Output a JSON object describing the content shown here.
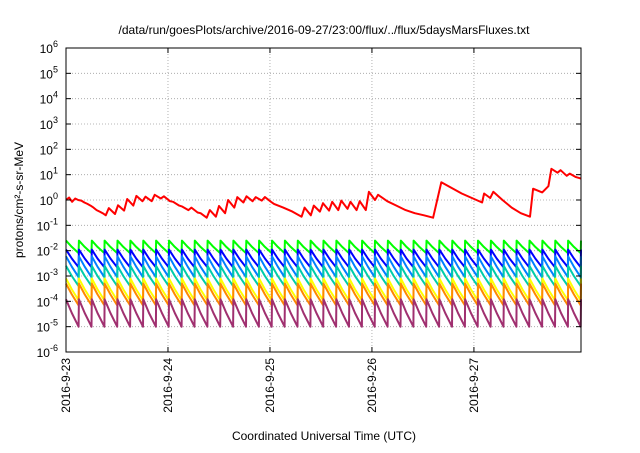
{
  "chart_data": {
    "type": "line",
    "title": "/data/run/goesPlots/archive/2016-09-27/23:00/flux/../flux/5daysMarsFluxes.txt",
    "xlabel": "Coordinated Universal Time (UTC)",
    "ylabel": "protons/cm²-s-sr-MeV",
    "x_ticks": [
      "2016-9-23",
      "2016-9-24",
      "2016-9-25",
      "2016-9-26",
      "2016-9-27"
    ],
    "x_range_days": [
      0,
      5.05
    ],
    "y_scale": "log",
    "ylim": [
      1e-06,
      1000000.0
    ],
    "y_ticks": [
      {
        "base": "10",
        "exp": "-6",
        "value": -6
      },
      {
        "base": "10",
        "exp": "-5",
        "value": -5
      },
      {
        "base": "10",
        "exp": "-4",
        "value": -4
      },
      {
        "base": "10",
        "exp": "-3",
        "value": -3
      },
      {
        "base": "10",
        "exp": "-2",
        "value": -2
      },
      {
        "base": "10",
        "exp": "-1",
        "value": -1
      },
      {
        "base": "10",
        "exp": "0",
        "value": 0
      },
      {
        "base": "10",
        "exp": "1",
        "value": 1
      },
      {
        "base": "10",
        "exp": "2",
        "value": 2
      },
      {
        "base": "10",
        "exp": "3",
        "value": 3
      },
      {
        "base": "10",
        "exp": "4",
        "value": 4
      },
      {
        "base": "10",
        "exp": "5",
        "value": 5
      },
      {
        "base": "10",
        "exp": "6",
        "value": 6
      }
    ],
    "grid": true,
    "sawtooth_count": 40,
    "series": [
      {
        "color": "#ff0000",
        "segments": [
          {
            "x": [
              0.0,
              0.03,
              0.06,
              0.09,
              0.12,
              0.15,
              0.18,
              0.21,
              0.24,
              0.27,
              0.3,
              0.33,
              0.36,
              0.39
            ],
            "y": [
              1.0,
              1.25,
              0.85,
              1.15,
              1.0,
              0.95,
              0.8,
              0.7,
              0.6,
              0.5,
              0.4,
              0.35,
              0.3,
              0.25
            ]
          },
          {
            "x": [
              0.39,
              0.42,
              0.48,
              0.51,
              0.57,
              0.6,
              0.66,
              0.69,
              0.75,
              0.78,
              0.84,
              0.87,
              0.93,
              0.96,
              1.02,
              1.05,
              1.11,
              1.14,
              1.2,
              1.23,
              1.29,
              1.32,
              1.38,
              1.41,
              1.47,
              1.5
            ],
            "y": [
              0.25,
              0.48,
              0.28,
              0.62,
              0.38,
              1.1,
              0.6,
              1.45,
              0.9,
              1.35,
              0.9,
              1.6,
              1.15,
              1.4,
              0.9,
              0.85,
              0.6,
              0.55,
              0.4,
              0.5,
              0.32,
              0.3,
              0.2,
              0.4,
              0.22,
              0.58
            ]
          },
          {
            "x": [
              1.5,
              1.56,
              1.59,
              1.65,
              1.68,
              1.74,
              1.77,
              1.83,
              1.86,
              1.92,
              1.95,
              2.01,
              2.04,
              2.13,
              2.22,
              2.31
            ],
            "y": [
              0.58,
              0.3,
              1.0,
              0.5,
              1.3,
              0.8,
              1.4,
              0.9,
              1.3,
              0.95,
              1.3,
              0.85,
              0.7,
              0.5,
              0.35,
              0.22
            ]
          },
          {
            "x": [
              2.31,
              2.34,
              2.4,
              2.43,
              2.49,
              2.52,
              2.58,
              2.61,
              2.67,
              2.7,
              2.76,
              2.79,
              2.85,
              2.88,
              2.94,
              2.97
            ],
            "y": [
              0.22,
              0.5,
              0.25,
              0.6,
              0.35,
              0.75,
              0.38,
              0.85,
              0.4,
              0.95,
              0.45,
              0.85,
              0.4,
              0.9,
              0.4,
              2.1
            ]
          },
          {
            "x": [
              2.97,
              3.03,
              3.06,
              3.15,
              3.24,
              3.33,
              3.42,
              3.51,
              3.6,
              3.68
            ],
            "y": [
              2.1,
              1.0,
              1.6,
              0.9,
              0.6,
              0.4,
              0.3,
              0.25,
              0.2,
              5.0
            ]
          },
          {
            "x": [
              3.68,
              3.78,
              3.88,
              3.98,
              4.08,
              4.1,
              4.16,
              4.19,
              4.28,
              4.37,
              4.46,
              4.55,
              4.58
            ],
            "y": [
              5.0,
              3.0,
              1.8,
              1.2,
              0.8,
              1.8,
              1.2,
              2.1,
              1.0,
              0.5,
              0.3,
              0.22,
              2.8
            ]
          },
          {
            "x": [
              4.58,
              4.67,
              4.73,
              4.76,
              4.82,
              4.85,
              4.91,
              4.94,
              5.0,
              5.05
            ],
            "y": [
              2.8,
              2.0,
              3.5,
              17.0,
              12.0,
              15.0,
              9.0,
              11.0,
              8.0,
              7.0
            ]
          }
        ]
      },
      {
        "color": "#00ff00",
        "sawtooth": {
          "min": 0.008,
          "max": 0.025
        }
      },
      {
        "color": "#0000ff",
        "sawtooth": {
          "min": 0.0022,
          "max": 0.011
        }
      },
      {
        "color": "#0080ff",
        "sawtooth": {
          "min": 0.0009,
          "max": 0.006
        }
      },
      {
        "color": "#00ccaa",
        "sawtooth": {
          "min": 0.0004,
          "max": 0.0025
        }
      },
      {
        "color": "#ffff00",
        "sawtooth": {
          "min": 0.00011,
          "max": 0.0008
        }
      },
      {
        "color": "#ff8800",
        "sawtooth": {
          "min": 7e-05,
          "max": 0.0005
        }
      },
      {
        "color": "#a03070",
        "sawtooth": {
          "min": 1e-05,
          "max": 0.00012
        }
      }
    ]
  }
}
